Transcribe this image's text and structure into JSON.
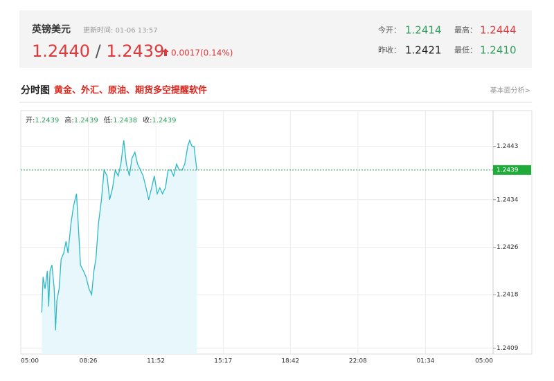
{
  "header": {
    "name": "英镑美元",
    "update_label": "更新时间:",
    "update_time": "01-06 13:57",
    "bid": "1.2440",
    "separator": "/",
    "ask": "1.2439",
    "change": "0.0017(0.14%)",
    "stats": [
      {
        "label": "今开：",
        "value": "1.2414"
      },
      {
        "label": "最高：",
        "value": "1.2444"
      },
      {
        "label": "昨收：",
        "value": "1.2421"
      },
      {
        "label": "最低：",
        "value": "1.2410"
      }
    ]
  },
  "section": {
    "title": "分时图",
    "promo": "黄金、外汇、原油、期货多空提醒软件",
    "link": "基本面分析>"
  },
  "chart_data": {
    "type": "line",
    "info": [
      {
        "label": "开:",
        "value": "1.2439"
      },
      {
        "label": "高:",
        "value": "1.2439"
      },
      {
        "label": "低:",
        "value": "1.2438"
      },
      {
        "label": "收:",
        "value": "1.2439"
      }
    ],
    "xlim": [
      "05:00",
      "05:00"
    ],
    "xticks": [
      "05:00",
      "08:26",
      "11:52",
      "15:17",
      "18:42",
      "22:08",
      "01:34",
      "05:00"
    ],
    "ylim": [
      1.2408,
      1.2449
    ],
    "yticks": [
      1.2409,
      1.2418,
      1.2426,
      1.2434,
      1.2443
    ],
    "grid": true,
    "current_price": 1.2439,
    "x": [
      "06:04",
      "06:08",
      "06:14",
      "06:21",
      "06:25",
      "06:29",
      "06:35",
      "06:42",
      "06:46",
      "06:50",
      "06:57",
      "07:03",
      "07:11",
      "07:18",
      "07:24",
      "07:33",
      "07:41",
      "07:50",
      "07:56",
      "08:02",
      "08:11",
      "08:19",
      "08:28",
      "08:36",
      "08:43",
      "08:49",
      "08:57",
      "09:06",
      "09:14",
      "09:23",
      "09:31",
      "09:40",
      "09:48",
      "09:57",
      "10:05",
      "10:14",
      "10:22",
      "10:31",
      "10:39",
      "10:48",
      "10:56",
      "11:05",
      "11:13",
      "11:22",
      "11:30",
      "11:39",
      "11:47",
      "11:56",
      "12:04",
      "12:12",
      "12:21",
      "12:29",
      "12:38",
      "12:46",
      "12:55",
      "13:03",
      "13:12",
      "13:20",
      "13:29",
      "13:35",
      "13:42",
      "13:48",
      "13:57"
    ],
    "series": [
      {
        "color": "#2bb8c9",
        "values": [
          1.2415,
          1.2421,
          1.2419,
          1.2422,
          1.2416,
          1.2422,
          1.2423,
          1.2419,
          1.2412,
          1.2417,
          1.2419,
          1.2424,
          1.2425,
          1.2427,
          1.2425,
          1.243,
          1.2433,
          1.2435,
          1.2429,
          1.2423,
          1.2422,
          1.2421,
          1.2419,
          1.2418,
          1.2422,
          1.2424,
          1.243,
          1.2434,
          1.2439,
          1.2438,
          1.2434,
          1.2436,
          1.2439,
          1.2438,
          1.244,
          1.2444,
          1.244,
          1.2438,
          1.2441,
          1.2442,
          1.244,
          1.2439,
          1.2438,
          1.2436,
          1.2434,
          1.2436,
          1.2438,
          1.2435,
          1.2436,
          1.2435,
          1.2436,
          1.2439,
          1.2439,
          1.2438,
          1.244,
          1.2439,
          1.2439,
          1.244,
          1.2443,
          1.2444,
          1.2443,
          1.2443,
          1.2439
        ]
      }
    ]
  }
}
